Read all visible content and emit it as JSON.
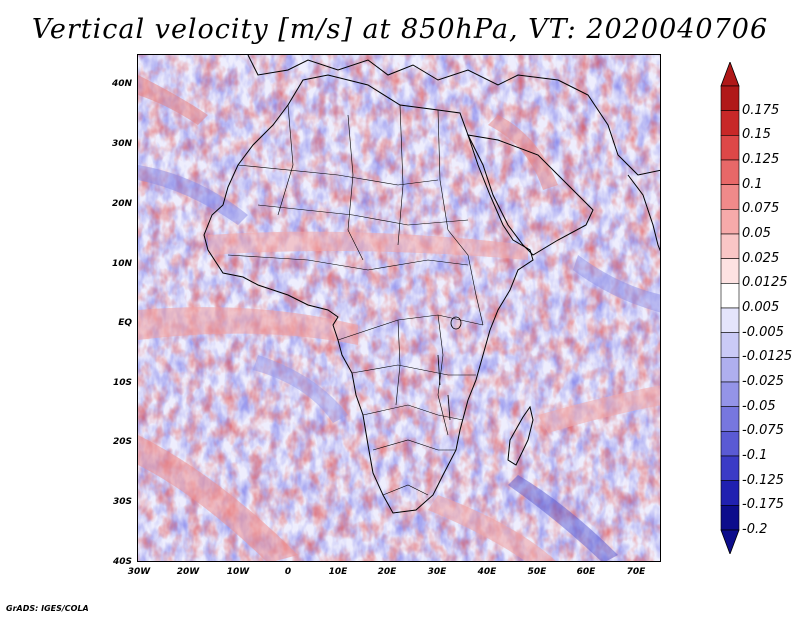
{
  "title": "Vertical velocity [m/s] at 850hPa, VT: 2020040706",
  "credit": "GrADS: IGES/COLA",
  "map": {
    "lat_range": [
      -40,
      45
    ],
    "lon_range": [
      -30,
      75
    ],
    "lat_ticks": [
      "40N",
      "30N",
      "20N",
      "10N",
      "EQ",
      "10S",
      "20S",
      "30S",
      "40S"
    ],
    "lon_ticks": [
      "30W",
      "20W",
      "10W",
      "0",
      "10E",
      "20E",
      "30E",
      "40E",
      "50E",
      "60E",
      "70E"
    ],
    "projection": "lat-lon",
    "field": "vertical velocity, shaded"
  },
  "colorbar": {
    "levels": [
      "0.175",
      "0.15",
      "0.125",
      "0.1",
      "0.075",
      "0.05",
      "0.025",
      "0.0125",
      "0.005",
      "-0.005",
      "-0.0125",
      "-0.025",
      "-0.05",
      "-0.075",
      "-0.1",
      "-0.125",
      "-0.175",
      "-0.2"
    ],
    "colors": [
      "#b01818",
      "#c82828",
      "#dd4848",
      "#e86868",
      "#f08a8a",
      "#f6aaaa",
      "#f9c6c6",
      "#fde2e2",
      "#ffffff",
      "#e4e4fc",
      "#cacaf6",
      "#afafef",
      "#9494e8",
      "#7777df",
      "#5a5ad4",
      "#3b3bc6",
      "#2020b0",
      "#0d0d8c"
    ],
    "arrow_top_color": "#b01818",
    "arrow_bottom_color": "#0d0d8c"
  }
}
